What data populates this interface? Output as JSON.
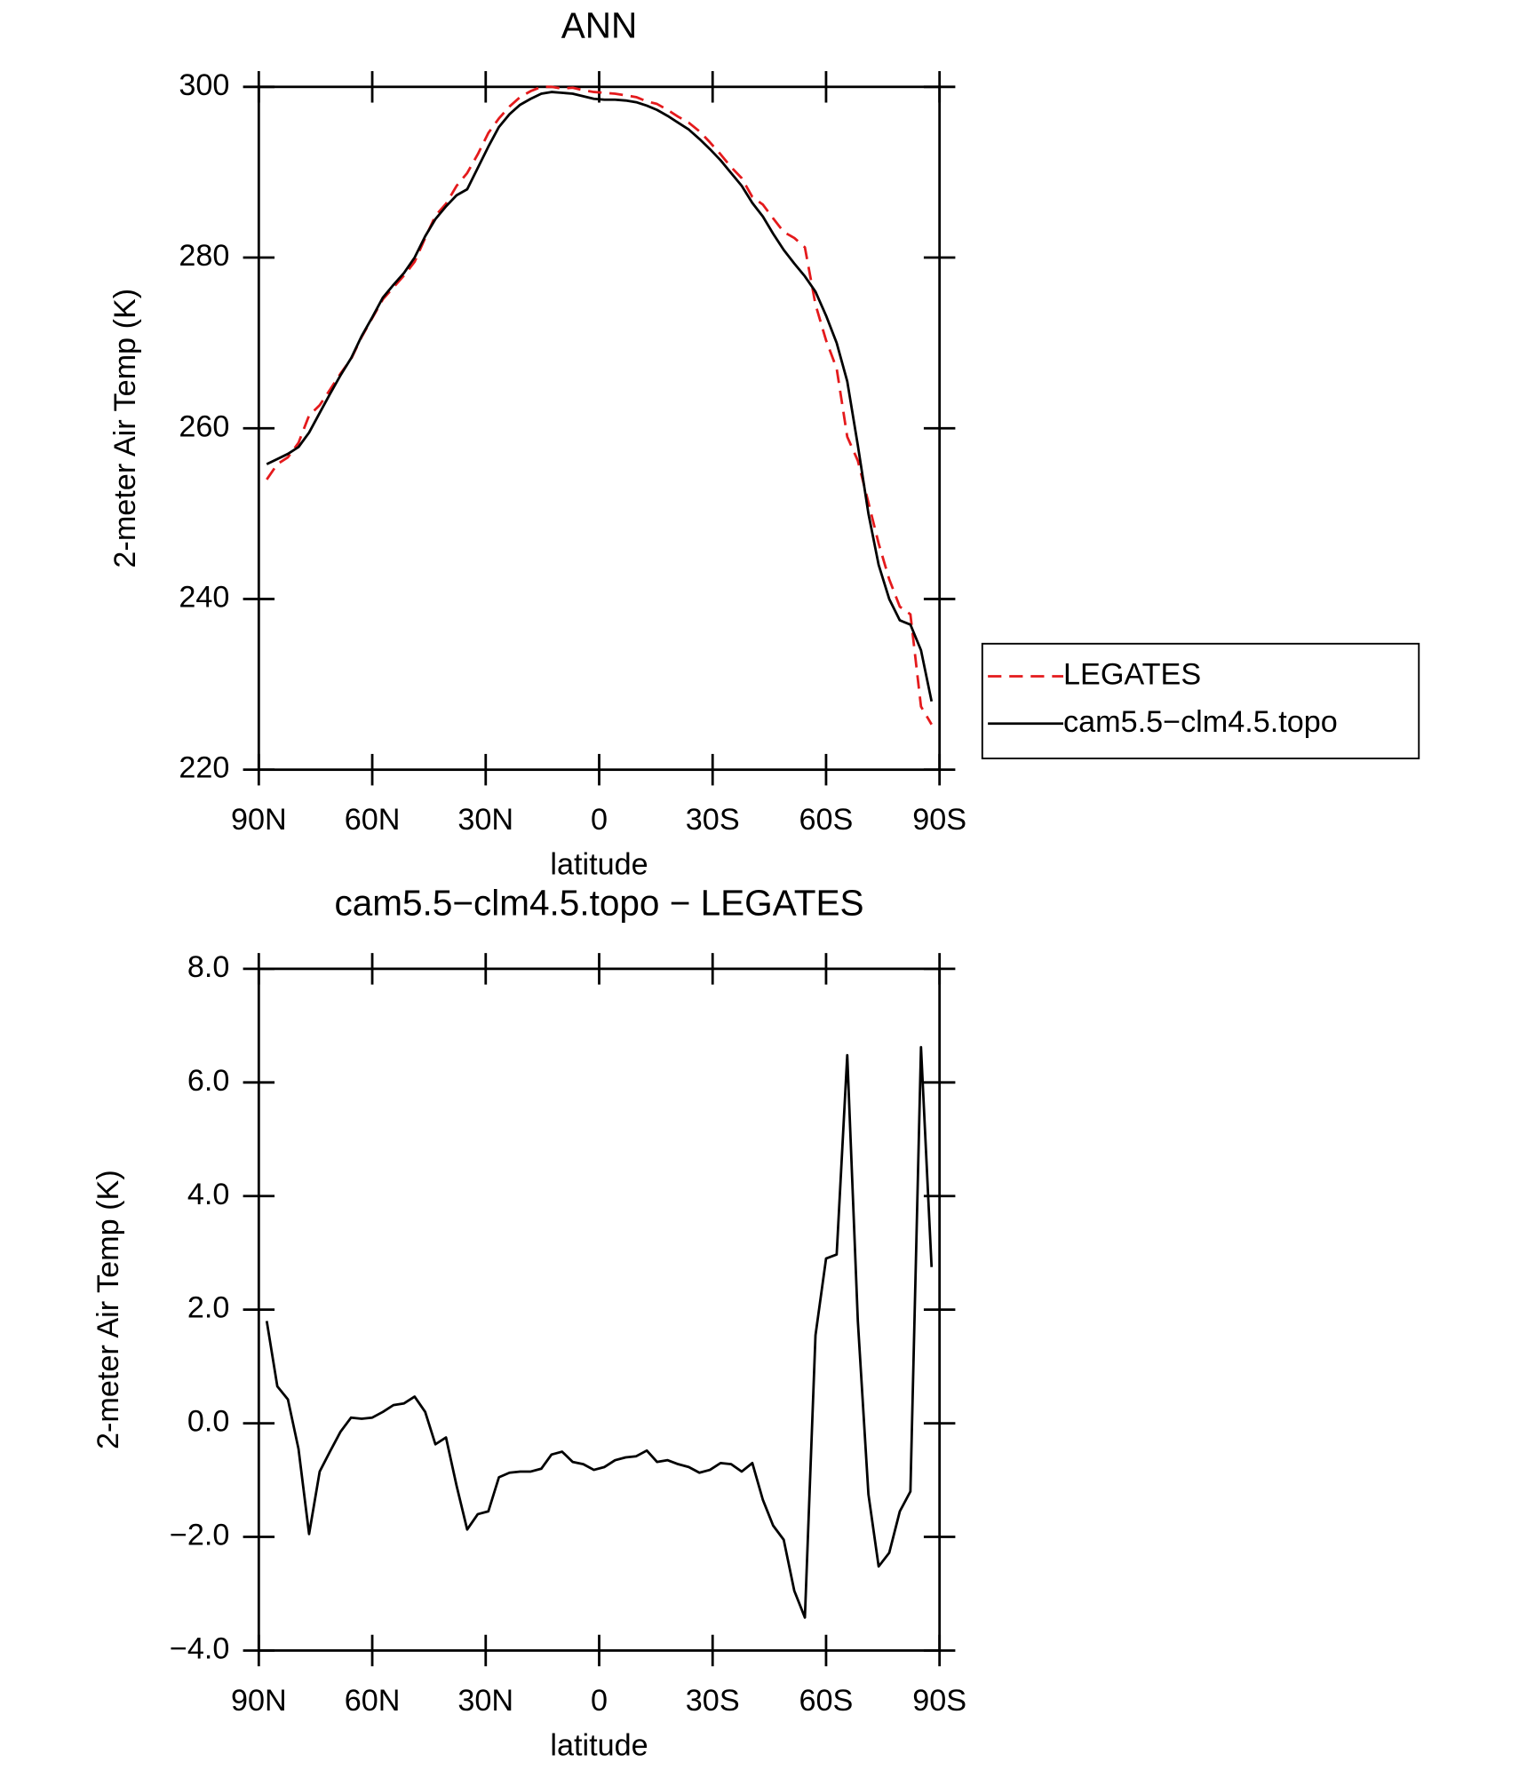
{
  "chart_data": [
    {
      "type": "line",
      "title": "ANN",
      "xlabel": "latitude",
      "ylabel": "2-meter Air Temp (K)",
      "x": [
        87.9,
        85.1,
        82.3,
        79.5,
        76.7,
        73.9,
        71.2,
        68.4,
        65.6,
        62.8,
        60.0,
        57.2,
        54.4,
        51.6,
        48.8,
        46.0,
        43.3,
        40.5,
        37.7,
        34.9,
        32.1,
        29.3,
        26.5,
        23.7,
        20.9,
        18.1,
        15.3,
        12.6,
        9.8,
        7.0,
        4.2,
        1.4,
        -1.4,
        -4.2,
        -7.0,
        -9.8,
        -12.6,
        -15.3,
        -18.1,
        -20.9,
        -23.7,
        -26.5,
        -29.3,
        -32.1,
        -34.9,
        -37.7,
        -40.5,
        -43.3,
        -46.0,
        -48.8,
        -51.6,
        -54.4,
        -57.2,
        -60.0,
        -62.8,
        -65.6,
        -68.4,
        -71.2,
        -73.9,
        -76.7,
        -79.5,
        -82.3,
        -85.1,
        -87.9
      ],
      "series": [
        {
          "name": "LEGATES",
          "color": "#e41a1c",
          "style": "dashed",
          "values": [
            254.0,
            255.8,
            256.6,
            258.3,
            261.5,
            262.7,
            264.5,
            266.4,
            268.1,
            270.7,
            272.9,
            275.1,
            276.5,
            277.9,
            279.5,
            282.3,
            284.9,
            286.3,
            288.4,
            289.9,
            292.1,
            294.6,
            296.3,
            297.7,
            298.8,
            299.5,
            300.0,
            300.0,
            299.8,
            299.9,
            299.6,
            299.4,
            299.3,
            299.2,
            299.0,
            298.8,
            298.3,
            298.0,
            297.3,
            296.5,
            295.8,
            294.8,
            293.5,
            292.1,
            290.6,
            289.3,
            287.1,
            286.2,
            284.6,
            283.0,
            282.3,
            281.2,
            274.5,
            270.3,
            267.0,
            259.0,
            256.2,
            251.3,
            246.5,
            242.3,
            239.1,
            238.2,
            227.4,
            225.3
          ]
        },
        {
          "name": "cam5.5−clm4.5.topo",
          "color": "#000000",
          "style": "solid",
          "values": [
            255.8,
            256.4,
            257.0,
            257.8,
            259.5,
            261.8,
            264.0,
            266.2,
            268.2,
            270.8,
            273.0,
            275.3,
            276.8,
            278.2,
            280.0,
            282.5,
            284.5,
            286.0,
            287.3,
            288.0,
            290.5,
            293.0,
            295.3,
            296.8,
            297.9,
            298.6,
            299.2,
            299.4,
            299.3,
            299.2,
            298.9,
            298.6,
            298.5,
            298.5,
            298.4,
            298.2,
            297.8,
            297.3,
            296.6,
            295.8,
            295.0,
            293.9,
            292.7,
            291.4,
            289.9,
            288.4,
            286.4,
            284.8,
            282.8,
            280.9,
            279.3,
            277.8,
            276.0,
            273.2,
            270.0,
            265.5,
            258.0,
            250.0,
            244.0,
            240.0,
            237.5,
            237.0,
            234.0,
            228.0
          ]
        }
      ],
      "xlim": [
        90,
        -90
      ],
      "xticks": [
        {
          "value": 90,
          "label": "90N"
        },
        {
          "value": 60,
          "label": "60N"
        },
        {
          "value": 30,
          "label": "30N"
        },
        0,
        {
          "value": -30,
          "label": "30S"
        },
        {
          "value": -60,
          "label": "60S"
        },
        {
          "value": -90,
          "label": "90S"
        }
      ],
      "ylim": [
        220,
        300
      ],
      "yticks": [
        220,
        240,
        260,
        280,
        300
      ],
      "legend": "right"
    },
    {
      "type": "line",
      "title": "cam5.5−clm4.5.topo − LEGATES",
      "xlabel": "latitude",
      "ylabel": "2-meter Air Temp (K)",
      "x": [
        87.9,
        85.1,
        82.3,
        79.5,
        76.7,
        73.9,
        71.2,
        68.4,
        65.6,
        62.8,
        60.0,
        57.2,
        54.4,
        51.6,
        48.8,
        46.0,
        43.3,
        40.5,
        37.7,
        34.9,
        32.1,
        29.3,
        26.5,
        23.7,
        20.9,
        18.1,
        15.3,
        12.6,
        9.8,
        7.0,
        4.2,
        1.4,
        -1.4,
        -4.2,
        -7.0,
        -9.8,
        -12.6,
        -15.3,
        -18.1,
        -20.9,
        -23.7,
        -26.5,
        -29.3,
        -32.1,
        -34.9,
        -37.7,
        -40.5,
        -43.3,
        -46.0,
        -48.8,
        -51.6,
        -54.4,
        -57.2,
        -60.0,
        -62.8,
        -65.6,
        -68.4,
        -71.2,
        -73.9,
        -76.7,
        -79.5,
        -82.3,
        -85.1,
        -87.9
      ],
      "series": [
        {
          "color": "#000000",
          "style": "solid",
          "values": [
            1.8,
            0.65,
            0.42,
            -0.45,
            -1.95,
            -0.85,
            -0.5,
            -0.15,
            0.1,
            0.08,
            0.1,
            0.2,
            0.32,
            0.35,
            0.47,
            0.2,
            -0.37,
            -0.25,
            -1.1,
            -1.87,
            -1.6,
            -1.55,
            -0.95,
            -0.87,
            -0.85,
            -0.85,
            -0.8,
            -0.55,
            -0.5,
            -0.68,
            -0.72,
            -0.82,
            -0.77,
            -0.65,
            -0.6,
            -0.58,
            -0.48,
            -0.68,
            -0.65,
            -0.72,
            -0.77,
            -0.87,
            -0.82,
            -0.7,
            -0.72,
            -0.85,
            -0.7,
            -1.35,
            -1.8,
            -2.05,
            -2.95,
            -3.42,
            1.55,
            2.9,
            2.97,
            6.48,
            1.8,
            -1.25,
            -2.52,
            -2.28,
            -1.55,
            -1.2,
            6.62,
            2.75
          ]
        }
      ],
      "xlim": [
        90,
        -90
      ],
      "xticks": [
        {
          "value": 90,
          "label": "90N"
        },
        {
          "value": 60,
          "label": "60N"
        },
        {
          "value": 30,
          "label": "30N"
        },
        0,
        {
          "value": -30,
          "label": "30S"
        },
        {
          "value": -60,
          "label": "60S"
        },
        {
          "value": -90,
          "label": "90S"
        }
      ],
      "ylim": [
        -4,
        8
      ],
      "yticks": [
        {
          "value": -4,
          "label": "−4.0"
        },
        {
          "value": -2,
          "label": "−2.0"
        },
        {
          "value": 0,
          "label": "0.0"
        },
        {
          "value": 2,
          "label": "2.0"
        },
        {
          "value": 4,
          "label": "4.0"
        },
        {
          "value": 6,
          "label": "6.0"
        },
        {
          "value": 8,
          "label": "8.0"
        }
      ]
    }
  ]
}
